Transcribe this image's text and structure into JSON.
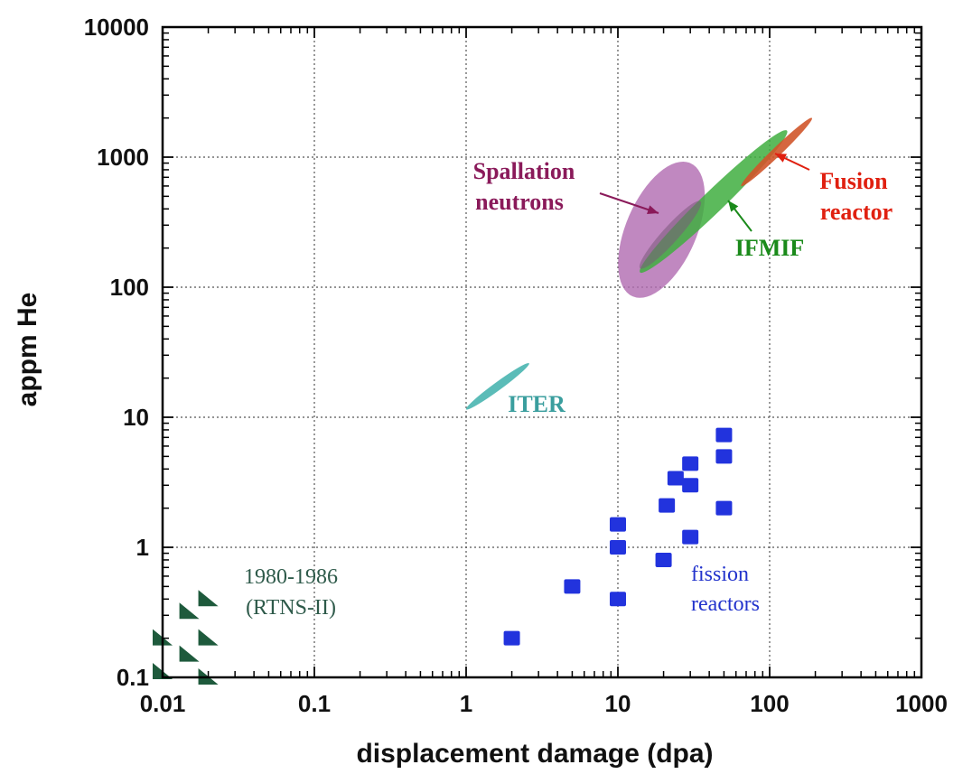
{
  "chart_data": {
    "type": "scatter",
    "xlabel": "displacement damage (dpa)",
    "ylabel": "appm He",
    "xscale": "log",
    "yscale": "log",
    "xlim": [
      0.01,
      1000
    ],
    "ylim": [
      0.1,
      10000
    ],
    "x_ticks": [
      "0.01",
      "0.1",
      "1",
      "10",
      "100",
      "1000"
    ],
    "y_ticks": [
      "0.1",
      "1",
      "10",
      "100",
      "1000",
      "10000"
    ],
    "grid": true,
    "colors": {
      "fission": "#2233dd",
      "rtns": "#1e5a3c",
      "iter": "#5bbcb8",
      "spallation": "#b06ab0",
      "ifmif": "#3fae3f",
      "fusion": "#d0552a",
      "spallation_label": "#8a1a5a",
      "ifmif_label": "#1a8a1a",
      "fusion_label": "#e02010",
      "iter_label": "#3a9e9e",
      "fission_label": "#2233cc",
      "rtns_label": "#2e5a4a"
    },
    "series": [
      {
        "name": "fission reactors",
        "marker": "square",
        "points": [
          {
            "x": 2,
            "y": 0.2
          },
          {
            "x": 5,
            "y": 0.5
          },
          {
            "x": 10,
            "y": 0.4
          },
          {
            "x": 10,
            "y": 1.0
          },
          {
            "x": 10,
            "y": 1.5
          },
          {
            "x": 20,
            "y": 0.8
          },
          {
            "x": 21,
            "y": 2.1
          },
          {
            "x": 24,
            "y": 3.4
          },
          {
            "x": 30,
            "y": 1.2
          },
          {
            "x": 30,
            "y": 3.0
          },
          {
            "x": 30,
            "y": 4.4
          },
          {
            "x": 50,
            "y": 2.0
          },
          {
            "x": 50,
            "y": 5.0
          },
          {
            "x": 50,
            "y": 7.3
          }
        ]
      },
      {
        "name": "1980-1986 (RTNS-II)",
        "marker": "triangle",
        "points": [
          {
            "x": 0.01,
            "y": 0.2
          },
          {
            "x": 0.01,
            "y": 0.11
          },
          {
            "x": 0.015,
            "y": 0.32
          },
          {
            "x": 0.015,
            "y": 0.15
          },
          {
            "x": 0.02,
            "y": 0.4
          },
          {
            "x": 0.02,
            "y": 0.2
          },
          {
            "x": 0.02,
            "y": 0.1
          }
        ]
      }
    ],
    "regions": [
      {
        "name": "ITER",
        "from": [
          1,
          11.5
        ],
        "to": [
          2.6,
          26
        ]
      },
      {
        "name": "Spallation neutrons",
        "from": [
          12.5,
          85
        ],
        "to": [
          30,
          900
        ]
      },
      {
        "name": "IFMIF",
        "from": [
          14,
          130
        ],
        "to": [
          130,
          1600
        ]
      },
      {
        "name": "Fusion reactor",
        "from": [
          65,
          600
        ],
        "to": [
          190,
          2000
        ]
      }
    ],
    "annotations": {
      "spallation": [
        "Spallation",
        "neutrons"
      ],
      "fusion": [
        "Fusion",
        "reactor"
      ],
      "ifmif": "IFMIF",
      "iter": "ITER",
      "fission": [
        "fission",
        "reactors"
      ],
      "rtns": [
        "1980-1986",
        "(RTNS-II)"
      ]
    }
  }
}
